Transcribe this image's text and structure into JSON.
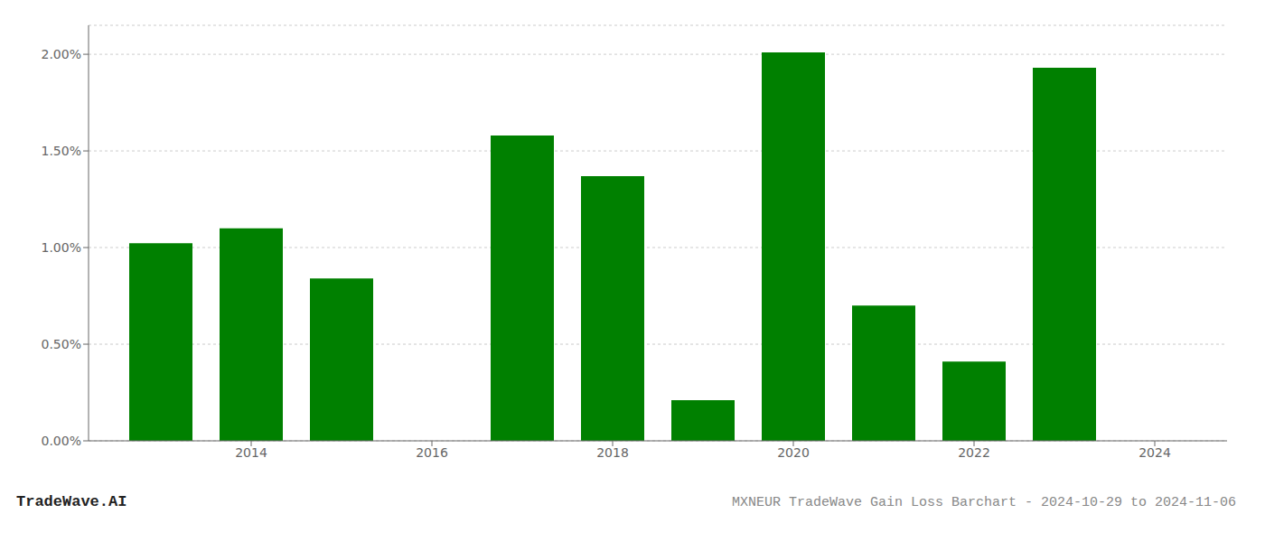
{
  "chart_data": {
    "type": "bar",
    "title": "MXNEUR TradeWave Gain Loss Barchart - 2024-10-29 to 2024-11-06",
    "annotations": [
      "TradeWave.AI"
    ],
    "x": [
      2013,
      2014,
      2015,
      2017,
      2018,
      2019,
      2020,
      2021,
      2022,
      2023
    ],
    "values": [
      0.01022,
      0.011,
      0.0084,
      0.0158,
      0.0137,
      0.0021,
      0.0201,
      0.007,
      0.0041,
      0.0193
    ],
    "color": "#008000",
    "xlim": [
      2012.2,
      2024.8
    ],
    "xticks": [
      2014,
      2016,
      2018,
      2020,
      2022,
      2024
    ],
    "ylim": [
      0,
      0.0215
    ],
    "yticks": [
      {
        "value": 0.0,
        "label": "0.00%"
      },
      {
        "value": 0.005,
        "label": "0.50%"
      },
      {
        "value": 0.01,
        "label": "1.00%"
      },
      {
        "value": 0.015,
        "label": "1.50%"
      },
      {
        "value": 0.02,
        "label": "2.00%"
      }
    ],
    "grid": "y"
  }
}
